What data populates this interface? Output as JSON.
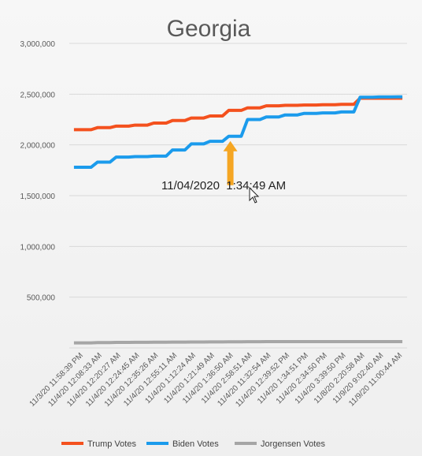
{
  "chart_data": {
    "type": "line",
    "title": "Georgia",
    "xlabel": "",
    "ylabel": "",
    "ylim": [
      0,
      3000000
    ],
    "yticks": [
      500000,
      1000000,
      1500000,
      2000000,
      2500000,
      3000000
    ],
    "ytick_labels": [
      "500,000",
      "1,000,000",
      "1,500,000",
      "2,000,000",
      "2,500,000",
      "3,000,000"
    ],
    "grid": true,
    "legend": "bottom",
    "categories": [
      "11/3/20 11:58:39 PM",
      "11/4/20 12:08:33 AM",
      "11/4/20 12:20:27 AM",
      "11/4/20 12:24:45 AM",
      "11/4/20 12:35:26 AM",
      "11/4/20 12:55:11 AM",
      "11/4/20 1:12:24 AM",
      "11/4/20 1:21:49 AM",
      "11/4/20 1:36:50 AM",
      "11/4/20 2:58:51 AM",
      "11/4/20 11:32:54 AM",
      "11/4/20 12:39:52 PM",
      "11/4/20 1:34:51 PM",
      "11/4/20 2:34:50 PM",
      "11/4/20 3:39:50 PM",
      "11/8/20 2:20:58 AM",
      "11/9/20 9:02:40 AM",
      "11/9/20 11:00:44 AM"
    ],
    "series": [
      {
        "name": "Trump Votes",
        "color": "#f4511e",
        "values": [
          2150000,
          2170000,
          2185000,
          2195000,
          2215000,
          2240000,
          2265000,
          2285000,
          2340000,
          2365000,
          2385000,
          2390000,
          2393000,
          2396000,
          2400000,
          2460000,
          2460000,
          2460000
        ]
      },
      {
        "name": "Biden Votes",
        "color": "#1b9bec",
        "values": [
          1780000,
          1830000,
          1880000,
          1885000,
          1890000,
          1950000,
          2010000,
          2035000,
          2085000,
          2250000,
          2275000,
          2295000,
          2310000,
          2315000,
          2325000,
          2470000,
          2472000,
          2473000
        ]
      },
      {
        "name": "Jorgensen Votes",
        "color": "#a6a6a6",
        "values": [
          50000,
          52000,
          54000,
          55000,
          56000,
          57000,
          58000,
          59000,
          60000,
          61000,
          62000,
          62000,
          62000,
          62000,
          62000,
          62000,
          62000,
          62000
        ]
      }
    ],
    "annotation": {
      "text": "11/04/2020  1:34:49 AM",
      "arrow_at_category": 8,
      "arrow_color": "#f5a623"
    }
  }
}
